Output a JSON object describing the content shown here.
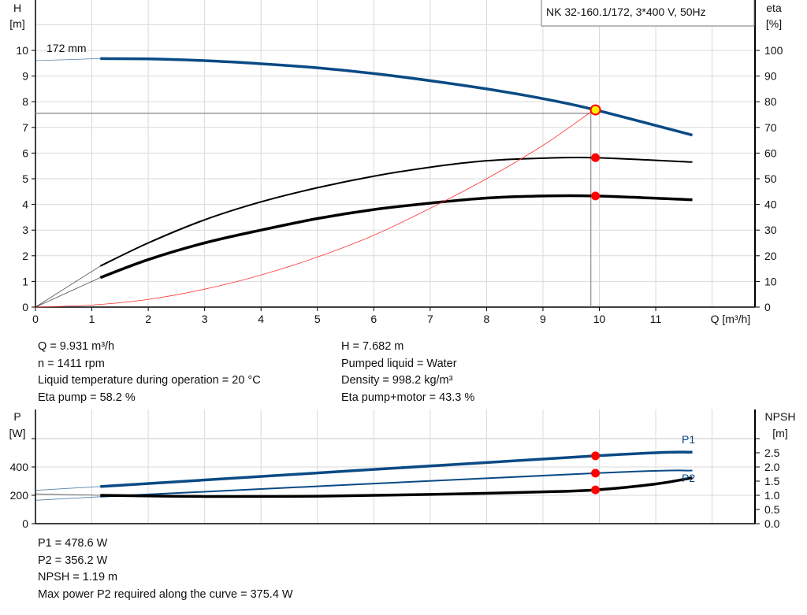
{
  "chart_data": [
    {
      "type": "line",
      "title": "NK 32-160.1/172, 3*400 V, 50Hz",
      "xlabel": "Q [m³/h]",
      "xlim": [
        0,
        12
      ],
      "xticks": [
        0,
        1,
        2,
        3,
        4,
        5,
        6,
        7,
        8,
        9,
        10,
        11
      ],
      "ylabel_left": [
        "H",
        "[m]"
      ],
      "ylim_left": [
        0,
        12
      ],
      "yticks_left": [
        0,
        1,
        2,
        3,
        4,
        5,
        6,
        7,
        8,
        9,
        10
      ],
      "ylabel_right": [
        "eta",
        "[%]"
      ],
      "ylim_right": [
        0,
        120
      ],
      "yticks_right": [
        0,
        10,
        20,
        30,
        40,
        50,
        60,
        70,
        80,
        90,
        100
      ],
      "grid": true,
      "curve_label": "172 mm",
      "series": [
        {
          "axis": "left",
          "color": "#0a4a85",
          "x": [
            1.15,
            2,
            3,
            4,
            5,
            6,
            7,
            8,
            9,
            9.931,
            11.65
          ],
          "values": [
            9.68,
            9.67,
            9.6,
            9.48,
            9.32,
            9.1,
            8.82,
            8.5,
            8.12,
            7.682,
            6.7
          ],
          "extrapolated": {
            "x": [
              0,
              1.15
            ],
            "values": [
              9.6,
              9.68
            ]
          }
        },
        {
          "axis": "right",
          "color": "#000000",
          "x": [
            1.15,
            2,
            3,
            4,
            5,
            6,
            7,
            8,
            9,
            9.931,
            11.65
          ],
          "values": [
            16,
            25,
            34,
            41,
            46.5,
            51,
            54.5,
            57,
            58,
            58.2,
            56.5
          ],
          "extrapolated": {
            "x": [
              0,
              1.15
            ],
            "values": [
              0,
              16
            ]
          }
        },
        {
          "axis": "right",
          "color": "#000000",
          "x": [
            1.15,
            2,
            3,
            4,
            5,
            6,
            7,
            8,
            9,
            9.931,
            11.65
          ],
          "values": [
            11.5,
            18.5,
            25,
            30,
            34.5,
            38,
            40.5,
            42.5,
            43.3,
            43.3,
            41.8
          ],
          "extrapolated": {
            "x": [
              0,
              1.15
            ],
            "values": [
              0,
              11.5
            ]
          }
        },
        {
          "axis": "left",
          "color": "#ff3333",
          "x": [
            0,
            1,
            2,
            3,
            4,
            5,
            6,
            7,
            8,
            9,
            9.85
          ],
          "values": [
            0,
            0.08,
            0.3,
            0.7,
            1.25,
            1.95,
            2.8,
            3.85,
            5.0,
            6.3,
            7.6
          ]
        }
      ],
      "operating_point": {
        "Q": 9.931,
        "H": 7.682,
        "eta_pump": 58.2,
        "eta_total": 43.3
      },
      "reference_lines": {
        "Q": 9.85,
        "H": 7.55
      }
    },
    {
      "type": "line",
      "xlim": [
        0,
        12
      ],
      "ylabel_left": [
        "P",
        "[W]"
      ],
      "ylim_left": [
        0,
        600
      ],
      "yticks_left": [
        0,
        200,
        400
      ],
      "ylabel_right": [
        "NPSH",
        "[m]"
      ],
      "ylim_right": [
        0,
        3.0
      ],
      "yticks_right": [
        "0.0",
        "0.5",
        "1.0",
        "1.5",
        "2.0",
        "2.5"
      ],
      "grid": true,
      "series": [
        {
          "name": "P1",
          "axis": "left",
          "color": "#0a4a85",
          "x": [
            1.15,
            9.931,
            11.65
          ],
          "values": [
            262,
            478.6,
            505
          ],
          "extrapolated": {
            "x": [
              0,
              1.15
            ],
            "values": [
              235,
              262
            ]
          }
        },
        {
          "name": "P2",
          "axis": "left",
          "color": "#0a4a85",
          "x": [
            1.15,
            9.931,
            11.65
          ],
          "values": [
            190,
            356.2,
            375
          ],
          "extrapolated": {
            "x": [
              0,
              1.15
            ],
            "values": [
              165,
              190
            ]
          }
        },
        {
          "axis": "right",
          "color": "#000000",
          "x": [
            1.15,
            3,
            5,
            7,
            9,
            9.931,
            11,
            11.65
          ],
          "values": [
            1.0,
            0.96,
            0.97,
            1.03,
            1.12,
            1.19,
            1.4,
            1.62
          ],
          "extrapolated": {
            "x": [
              0,
              1.15
            ],
            "values": [
              1.05,
              1.0
            ]
          }
        }
      ],
      "operating_point": {
        "Q": 9.931,
        "P1": 478.6,
        "P2": 356.2,
        "NPSH": 1.19
      }
    }
  ],
  "info_top": {
    "left": [
      "Q = 9.931 m³/h",
      "n = 1411 rpm",
      "Liquid temperature during operation = 20 °C",
      "Eta pump = 58.2 %"
    ],
    "right": [
      "H = 7.682 m",
      "Pumped liquid = Water",
      "Density = 998.2 kg/m³",
      "Eta pump+motor = 43.3 %"
    ]
  },
  "info_bottom": [
    "P1 = 478.6 W",
    "P2 = 356.2 W",
    "NPSH = 1.19 m",
    "Max power P2 required along the curve = 375.4 W"
  ]
}
